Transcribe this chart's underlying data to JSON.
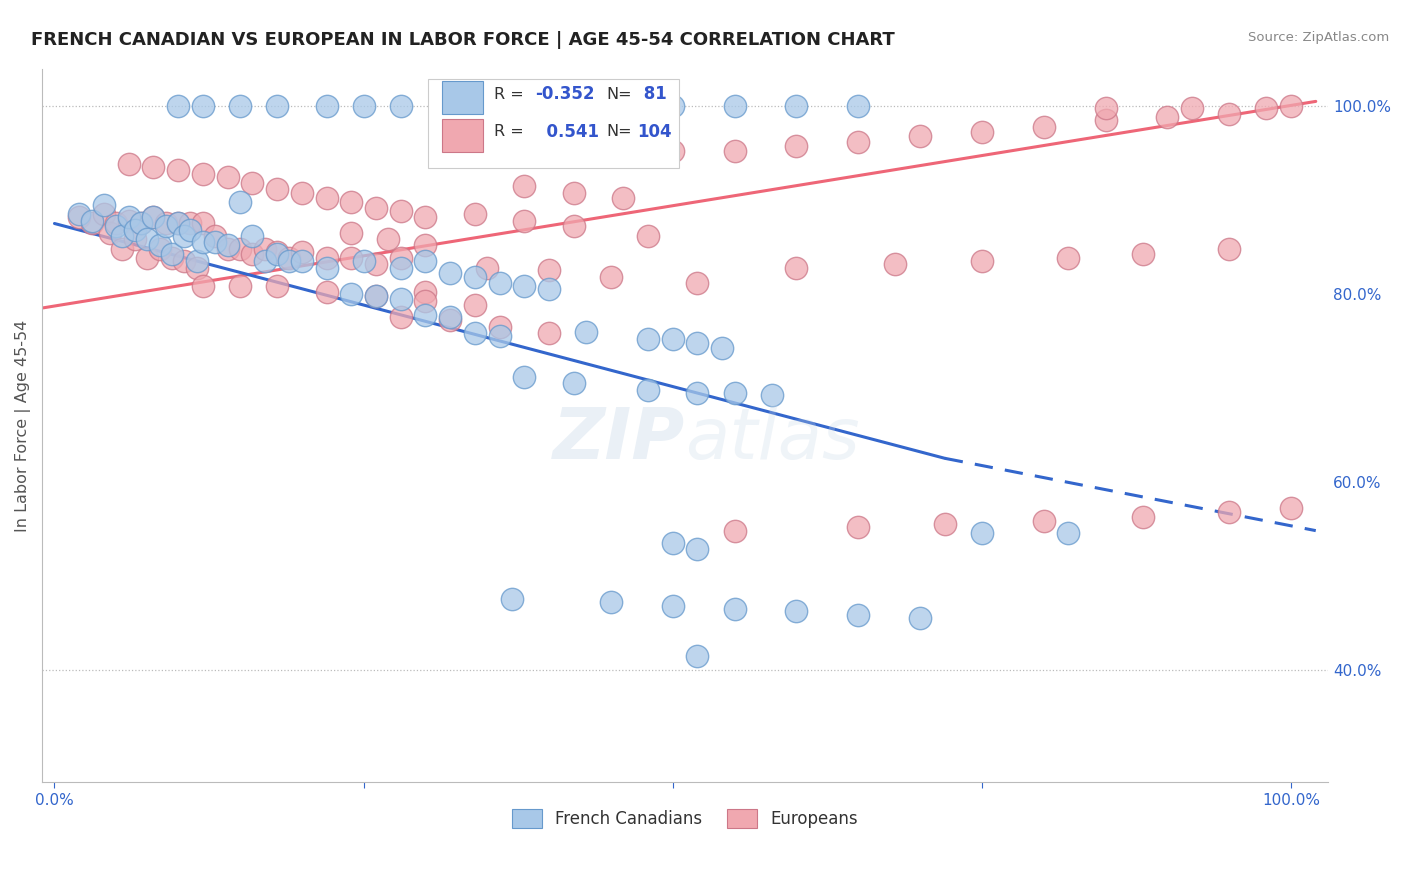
{
  "title": "FRENCH CANADIAN VS EUROPEAN IN LABOR FORCE | AGE 45-54 CORRELATION CHART",
  "source": "Source: ZipAtlas.com",
  "ylabel": "In Labor Force | Age 45-54",
  "blue_R": -0.352,
  "blue_N": 81,
  "pink_R": 0.541,
  "pink_N": 104,
  "blue_color": "#A8C8E8",
  "blue_edge": "#6699CC",
  "pink_color": "#F0A8B0",
  "pink_edge": "#CC7788",
  "blue_line_color": "#3366CC",
  "pink_line_color": "#EE6677",
  "watermark": "ZIPatlas",
  "legend_text_color": "#333333",
  "legend_value_color": "#3355CC",
  "axis_label_color": "#3366CC",
  "ylabel_color": "#555555",
  "title_color": "#222222",
  "source_color": "#888888",
  "xlim": [
    -0.01,
    1.03
  ],
  "ylim": [
    0.28,
    1.04
  ],
  "xticks": [
    0.0,
    0.25,
    0.5,
    0.75,
    1.0
  ],
  "xticklabels": [
    "0.0%",
    "",
    "",
    "",
    "100.0%"
  ],
  "yticks": [
    0.4,
    0.6,
    0.8,
    1.0
  ],
  "yticklabels": [
    "40.0%",
    "60.0%",
    "80.0%",
    "100.0%"
  ],
  "hlines": [
    1.0,
    0.4
  ],
  "blue_x": [
    0.02,
    0.03,
    0.04,
    0.05,
    0.055,
    0.06,
    0.065,
    0.07,
    0.075,
    0.08,
    0.085,
    0.09,
    0.095,
    0.1,
    0.105,
    0.11,
    0.115,
    0.12,
    0.13,
    0.14,
    0.15,
    0.16,
    0.17,
    0.18,
    0.19,
    0.2,
    0.22,
    0.24,
    0.26,
    0.28,
    0.3,
    0.32,
    0.34,
    0.36,
    0.1,
    0.12,
    0.15,
    0.18,
    0.22,
    0.25,
    0.28,
    0.32,
    0.36,
    0.4,
    0.45,
    0.5,
    0.55,
    0.6,
    0.65,
    0.25,
    0.28,
    0.3,
    0.32,
    0.34,
    0.36,
    0.38,
    0.4,
    0.43,
    0.48,
    0.5,
    0.52,
    0.54,
    0.75,
    0.82,
    0.5,
    0.52,
    0.52,
    0.38,
    0.42,
    0.48,
    0.52,
    0.55,
    0.58,
    0.37,
    0.45,
    0.5,
    0.55,
    0.6,
    0.65,
    0.7
  ],
  "blue_y": [
    0.885,
    0.878,
    0.895,
    0.872,
    0.862,
    0.882,
    0.868,
    0.875,
    0.858,
    0.882,
    0.852,
    0.872,
    0.842,
    0.875,
    0.862,
    0.868,
    0.835,
    0.855,
    0.855,
    0.852,
    0.898,
    0.862,
    0.835,
    0.842,
    0.835,
    0.835,
    0.828,
    0.8,
    0.798,
    0.795,
    0.778,
    0.775,
    0.758,
    0.755,
    1.0,
    1.0,
    1.0,
    1.0,
    1.0,
    1.0,
    1.0,
    1.0,
    1.0,
    1.0,
    1.0,
    1.0,
    1.0,
    1.0,
    1.0,
    0.835,
    0.828,
    0.835,
    0.822,
    0.818,
    0.812,
    0.808,
    0.805,
    0.76,
    0.752,
    0.752,
    0.748,
    0.742,
    0.545,
    0.545,
    0.535,
    0.528,
    0.415,
    0.712,
    0.705,
    0.698,
    0.695,
    0.695,
    0.692,
    0.475,
    0.472,
    0.468,
    0.465,
    0.462,
    0.458,
    0.455
  ],
  "pink_x": [
    0.02,
    0.03,
    0.04,
    0.045,
    0.05,
    0.055,
    0.06,
    0.065,
    0.07,
    0.075,
    0.08,
    0.085,
    0.09,
    0.095,
    0.1,
    0.105,
    0.11,
    0.115,
    0.12,
    0.13,
    0.14,
    0.15,
    0.16,
    0.17,
    0.18,
    0.19,
    0.2,
    0.22,
    0.24,
    0.26,
    0.28,
    0.3,
    0.06,
    0.08,
    0.1,
    0.12,
    0.14,
    0.16,
    0.18,
    0.2,
    0.22,
    0.24,
    0.26,
    0.28,
    0.3,
    0.12,
    0.15,
    0.18,
    0.22,
    0.26,
    0.3,
    0.34,
    0.24,
    0.27,
    0.3,
    0.28,
    0.32,
    0.36,
    0.4,
    0.35,
    0.4,
    0.45,
    0.52,
    0.34,
    0.38,
    0.42,
    0.48,
    0.38,
    0.42,
    0.46,
    0.5,
    0.55,
    0.6,
    0.65,
    0.7,
    0.75,
    0.8,
    0.85,
    0.9,
    0.95,
    0.6,
    0.68,
    0.75,
    0.82,
    0.88,
    0.95,
    0.55,
    0.65,
    0.72,
    0.8,
    0.88,
    0.95,
    1.0,
    0.85,
    0.92,
    1.0,
    0.98
  ],
  "pink_y": [
    0.882,
    0.875,
    0.885,
    0.865,
    0.875,
    0.848,
    0.878,
    0.858,
    0.875,
    0.838,
    0.882,
    0.848,
    0.875,
    0.838,
    0.875,
    0.835,
    0.875,
    0.828,
    0.875,
    0.862,
    0.848,
    0.848,
    0.842,
    0.848,
    0.845,
    0.838,
    0.845,
    0.838,
    0.838,
    0.832,
    0.838,
    0.802,
    0.938,
    0.935,
    0.932,
    0.928,
    0.925,
    0.918,
    0.912,
    0.908,
    0.902,
    0.898,
    0.892,
    0.888,
    0.882,
    0.808,
    0.808,
    0.808,
    0.802,
    0.798,
    0.792,
    0.788,
    0.865,
    0.858,
    0.852,
    0.775,
    0.772,
    0.765,
    0.758,
    0.828,
    0.825,
    0.818,
    0.812,
    0.885,
    0.878,
    0.872,
    0.862,
    0.915,
    0.908,
    0.902,
    0.952,
    0.952,
    0.958,
    0.962,
    0.968,
    0.972,
    0.978,
    0.985,
    0.988,
    0.992,
    0.828,
    0.832,
    0.835,
    0.838,
    0.842,
    0.848,
    0.548,
    0.552,
    0.555,
    0.558,
    0.562,
    0.568,
    0.572,
    0.998,
    0.998,
    1.0,
    0.998
  ]
}
